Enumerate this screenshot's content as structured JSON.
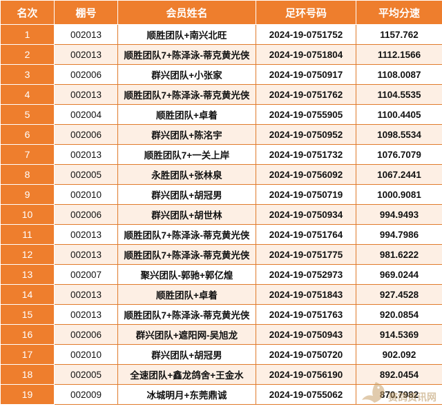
{
  "table": {
    "headers": [
      "名次",
      "棚号",
      "会员姓名",
      "足环号码",
      "平均分速"
    ],
    "rows": [
      {
        "rank": "1",
        "shed": "002013",
        "name": "顺胜团队+南兴北旺",
        "ring": "2024-19-0751752",
        "speed": "1157.762"
      },
      {
        "rank": "2",
        "shed": "002013",
        "name": "顺胜团队7+陈泽泳-蒂克黄光侠",
        "ring": "2024-19-0751804",
        "speed": "1112.1566"
      },
      {
        "rank": "3",
        "shed": "002006",
        "name": "群兴团队+小张家",
        "ring": "2024-19-0750917",
        "speed": "1108.0087"
      },
      {
        "rank": "4",
        "shed": "002013",
        "name": "顺胜团队7+陈泽泳-蒂克黄光侠",
        "ring": "2024-19-0751762",
        "speed": "1104.5535"
      },
      {
        "rank": "5",
        "shed": "002004",
        "name": "顺胜团队+卓着",
        "ring": "2024-19-0755905",
        "speed": "1100.4405"
      },
      {
        "rank": "6",
        "shed": "002006",
        "name": "群兴团队+陈洺宇",
        "ring": "2024-19-0750952",
        "speed": "1098.5534"
      },
      {
        "rank": "7",
        "shed": "002013",
        "name": "顺胜团队7+一关上岸",
        "ring": "2024-19-0751732",
        "speed": "1076.7079"
      },
      {
        "rank": "8",
        "shed": "002005",
        "name": "永胜团队+张林泉",
        "ring": "2024-19-0756092",
        "speed": "1067.2441"
      },
      {
        "rank": "9",
        "shed": "002010",
        "name": "群兴团队+胡冠男",
        "ring": "2024-19-0750719",
        "speed": "1000.9081"
      },
      {
        "rank": "10",
        "shed": "002006",
        "name": "群兴团队+胡世林",
        "ring": "2024-19-0750934",
        "speed": "994.9493"
      },
      {
        "rank": "11",
        "shed": "002013",
        "name": "顺胜团队7+陈泽泳-蒂克黄光侠",
        "ring": "2024-19-0751764",
        "speed": "994.7986"
      },
      {
        "rank": "12",
        "shed": "002013",
        "name": "顺胜团队7+陈泽泳-蒂克黄光侠",
        "ring": "2024-19-0751775",
        "speed": "981.6222"
      },
      {
        "rank": "13",
        "shed": "002007",
        "name": "聚兴团队-郭驰+郭亿煌",
        "ring": "2024-19-0752973",
        "speed": "969.0244"
      },
      {
        "rank": "14",
        "shed": "002013",
        "name": "顺胜团队+卓着",
        "ring": "2024-19-0751843",
        "speed": "927.4528"
      },
      {
        "rank": "15",
        "shed": "002013",
        "name": "顺胜团队7+陈泽泳-蒂克黄光侠",
        "ring": "2024-19-0751763",
        "speed": "920.0854"
      },
      {
        "rank": "16",
        "shed": "002006",
        "name": "群兴团队+遮阳网-吴旭龙",
        "ring": "2024-19-0750943",
        "speed": "914.5369"
      },
      {
        "rank": "17",
        "shed": "002010",
        "name": "群兴团队+胡冠男",
        "ring": "2024-19-0750720",
        "speed": "902.092"
      },
      {
        "rank": "18",
        "shed": "002005",
        "name": "全速团队+鑫龙鸽舍+王金水",
        "ring": "2024-19-0756190",
        "speed": "892.0454"
      },
      {
        "rank": "19",
        "shed": "002009",
        "name": "冰城明月+东莞鼎诚",
        "ring": "2024-19-0755062",
        "speed": "870.7982"
      }
    ]
  },
  "watermark": {
    "text": "赛鸽资讯网",
    "icon": "pigeon-icon",
    "color": "#c9a26b"
  },
  "colors": {
    "header_bg": "#ee7e2d",
    "stripe": "#fdefe4",
    "border": "#e07a2a"
  }
}
